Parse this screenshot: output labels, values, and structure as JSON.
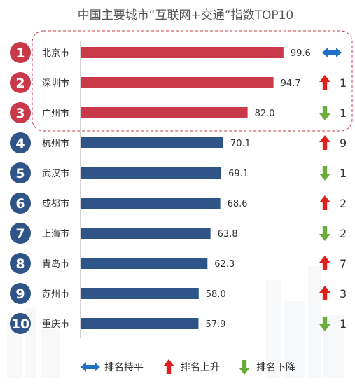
{
  "chart_data": {
    "type": "bar",
    "orientation": "horizontal",
    "title": "中国主要城市“互联网+交通”指数TOP10",
    "categories": [
      "北京市",
      "深圳市",
      "广州市",
      "杭州市",
      "武汉市",
      "成都市",
      "上海市",
      "青岛市",
      "苏州市",
      "重庆市"
    ],
    "ranks": [
      "1",
      "2",
      "3",
      "4",
      "5",
      "6",
      "7",
      "8",
      "9",
      "10"
    ],
    "values": [
      99.6,
      94.7,
      82.0,
      70.1,
      69.1,
      68.6,
      63.8,
      62.3,
      58.0,
      57.9
    ],
    "value_labels": [
      "99.6",
      "94.7",
      "82.0",
      "70.1",
      "69.1",
      "68.6",
      "63.8",
      "62.3",
      "58.0",
      "57.9"
    ],
    "rank_change": [
      {
        "direction": "flat",
        "amount": ""
      },
      {
        "direction": "up",
        "amount": "1"
      },
      {
        "direction": "down",
        "amount": "1"
      },
      {
        "direction": "up",
        "amount": "9"
      },
      {
        "direction": "down",
        "amount": "1"
      },
      {
        "direction": "up",
        "amount": "2"
      },
      {
        "direction": "down",
        "amount": "2"
      },
      {
        "direction": "up",
        "amount": "7"
      },
      {
        "direction": "up",
        "amount": "3"
      },
      {
        "direction": "down",
        "amount": "1"
      }
    ],
    "top3_highlighted": true,
    "legend": [
      {
        "direction": "flat",
        "label": "排名持平"
      },
      {
        "direction": "up",
        "label": "排名上升"
      },
      {
        "direction": "down",
        "label": "排名下降"
      }
    ],
    "grid": false,
    "xlim": [
      0,
      100
    ]
  },
  "colors": {
    "top3": "#c9394a",
    "others": "#2f5487",
    "flat_arrow": "#1f6fc4",
    "up_arrow": "#e0201e",
    "down_arrow": "#6cad3a",
    "highlight_border": "#c9394a"
  }
}
